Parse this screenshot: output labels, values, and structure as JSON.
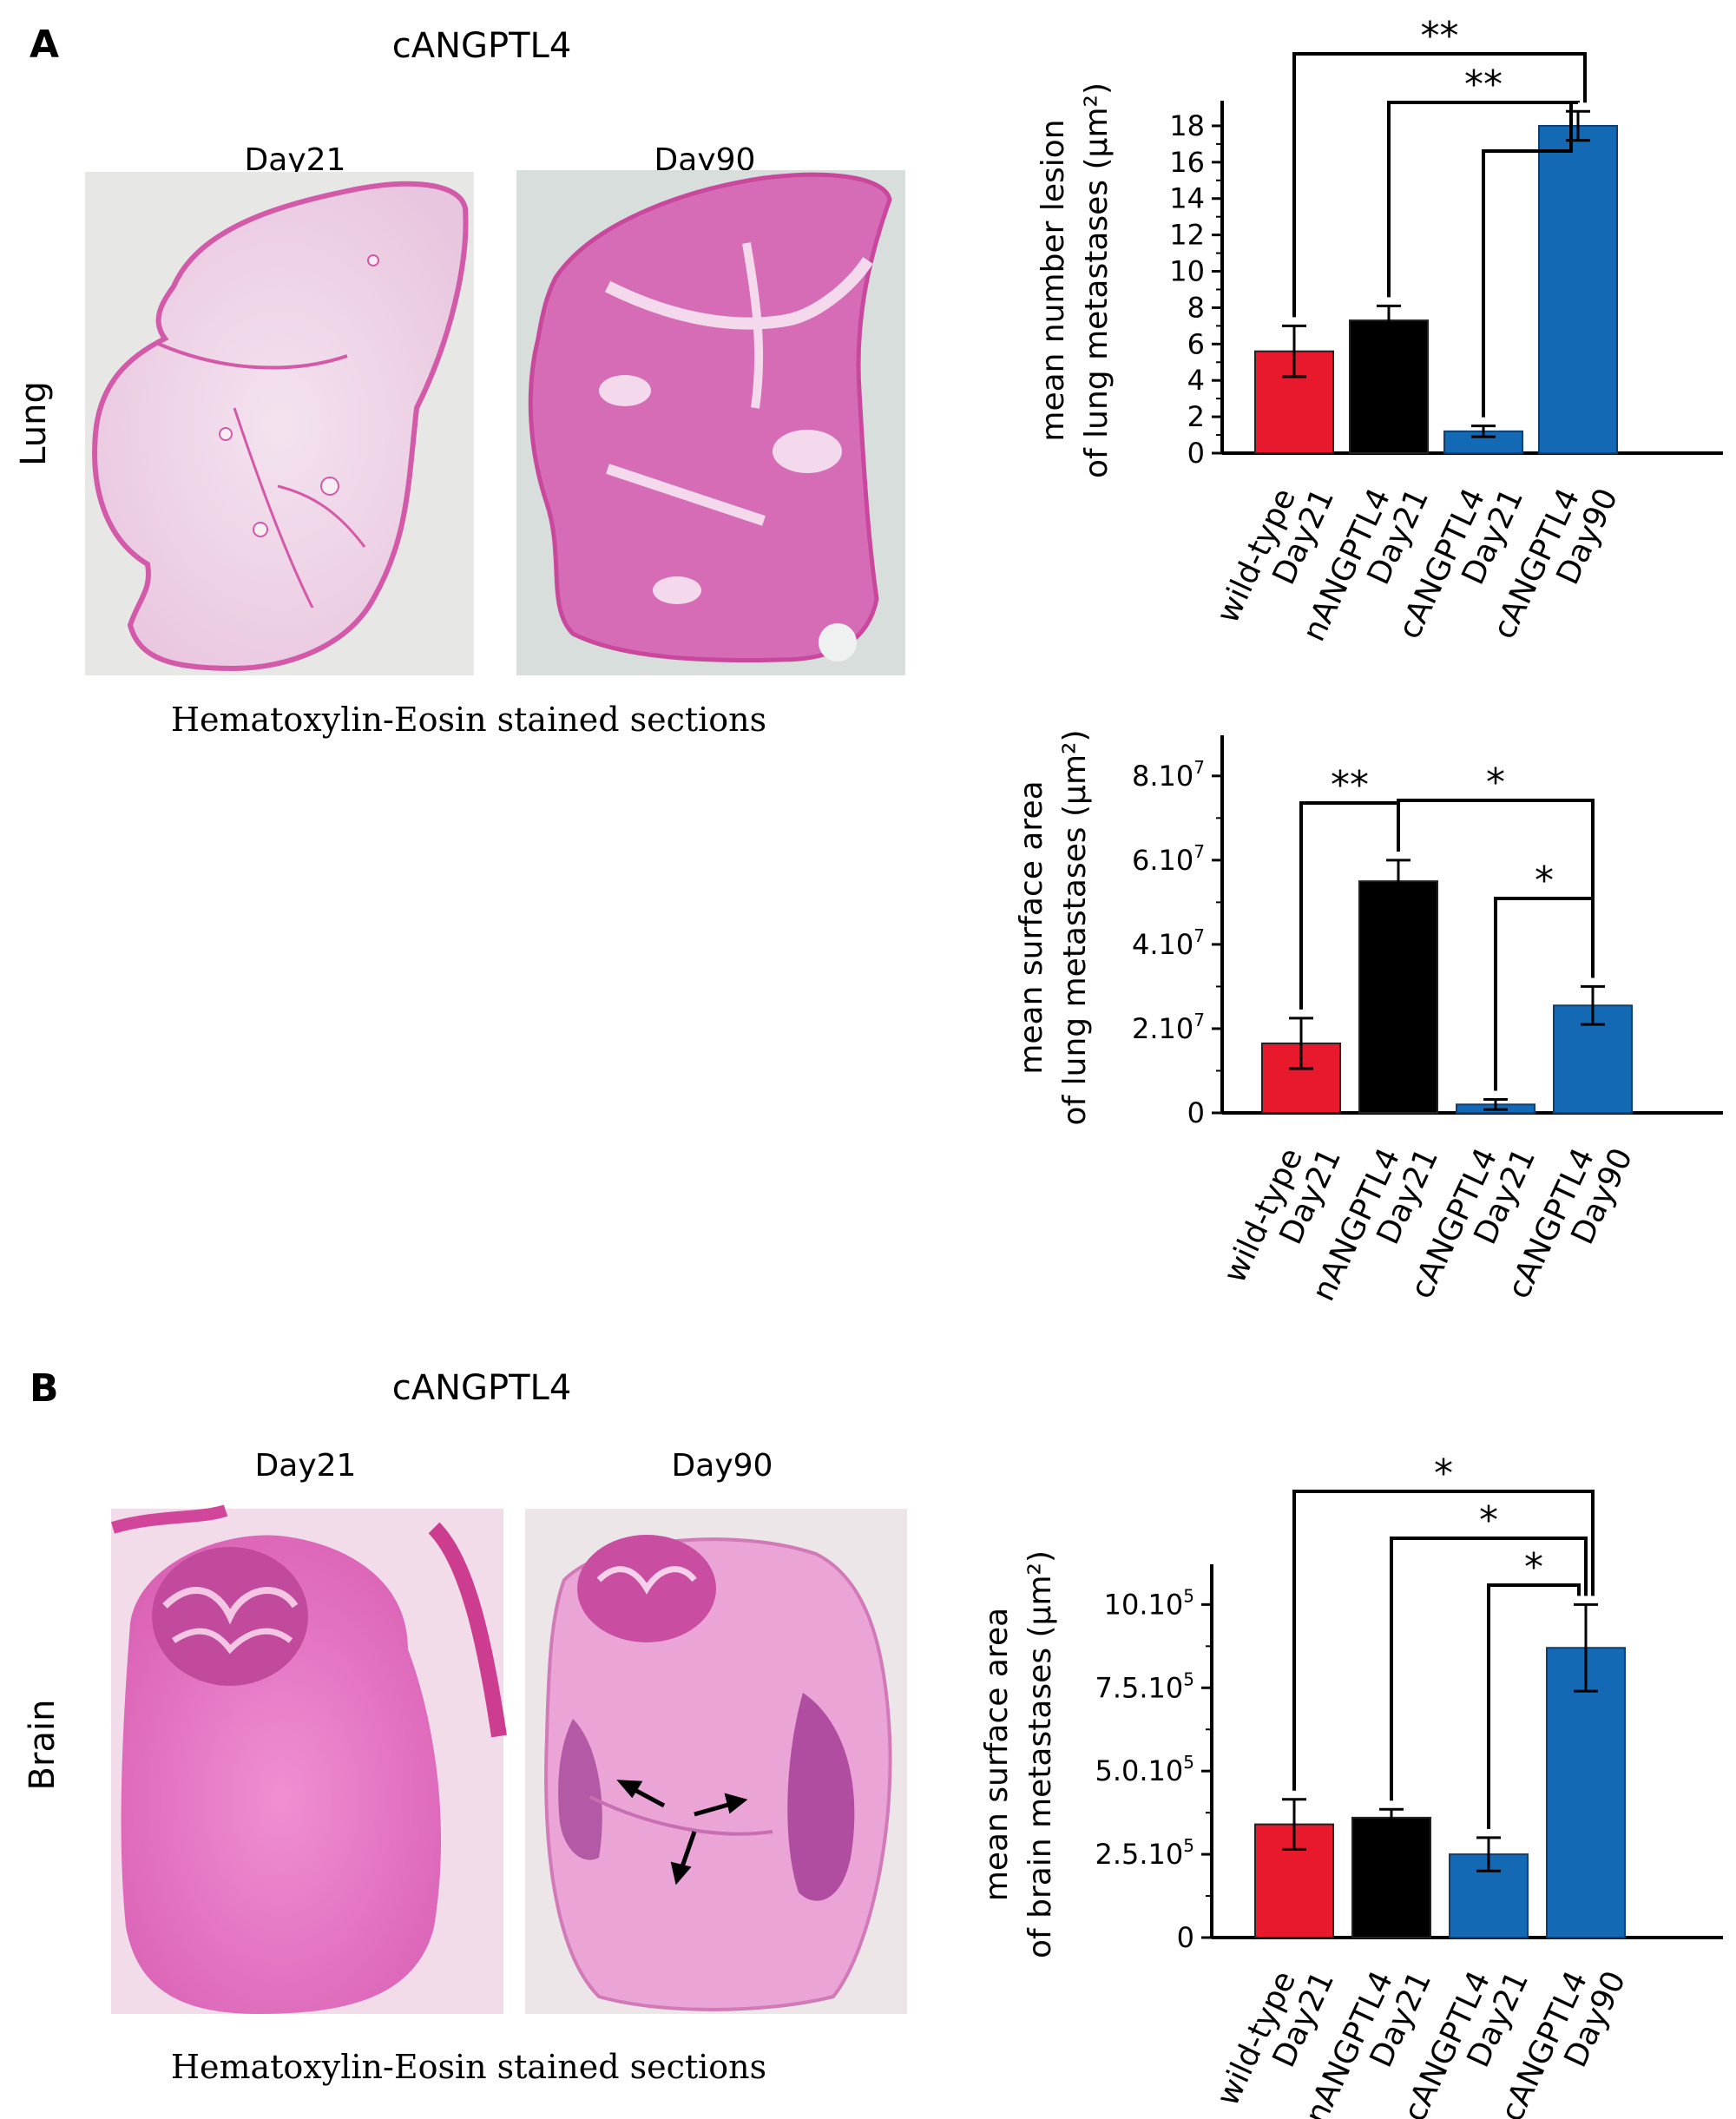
{
  "panel_a": {
    "letter": "A",
    "heading": "cANGPTL4",
    "row_label": "Lung",
    "image_labels": [
      "Day21",
      "Day90"
    ],
    "caption": "Hematoxylin-Eosin stained sections"
  },
  "panel_b": {
    "letter": "B",
    "heading": "cANGPTL4",
    "row_label": "Brain",
    "image_labels": [
      "Day21",
      "Day90"
    ],
    "caption": "Hematoxylin-Eosin stained sections"
  },
  "colors": {
    "wild_type": "#e8192c",
    "nANGPTL4": "#000000",
    "cANGPTL4": "#1469b5",
    "tissue": "#df6ab9"
  },
  "chart_data": [
    {
      "id": "lung-count",
      "type": "bar",
      "ylabel_line1": "mean number lesion",
      "ylabel_line2": "of lung metastases (µm²)",
      "ylim": [
        0,
        19
      ],
      "ticks": [
        {
          "value": 0,
          "label": "0"
        },
        {
          "value": 2,
          "label": "2"
        },
        {
          "value": 4,
          "label": "4"
        },
        {
          "value": 6,
          "label": "6"
        },
        {
          "value": 8,
          "label": "8"
        },
        {
          "value": 10,
          "label": "10"
        },
        {
          "value": 12,
          "label": "12"
        },
        {
          "value": 14,
          "label": "14"
        },
        {
          "value": 16,
          "label": "16"
        },
        {
          "value": 18,
          "label": "18"
        }
      ],
      "bars": [
        {
          "label1": "wild-type",
          "label2": "Day21",
          "value": 5.6,
          "err": 1.4,
          "group": "wild_type"
        },
        {
          "label1": "nANGPTL4",
          "label2": "Day21",
          "value": 7.3,
          "err": 0.8,
          "group": "nANGPTL4"
        },
        {
          "label1": "cANGPTL4",
          "label2": "Day21",
          "value": 1.2,
          "err": 0.3,
          "group": "cANGPTL4"
        },
        {
          "label1": "cANGPTL4",
          "label2": "Day90",
          "value": 18.0,
          "err": 0.8,
          "group": "cANGPTL4"
        }
      ],
      "significance": [
        {
          "from": 0,
          "to": 3,
          "label": "**"
        },
        {
          "from": 1,
          "to": 3,
          "label": "**"
        },
        {
          "from": 2,
          "to": 3,
          "label": ""
        }
      ]
    },
    {
      "id": "lung-area",
      "type": "bar",
      "ylabel_line1": "mean surface area",
      "ylabel_line2": "of lung metastases (µm²)",
      "ylim": [
        0,
        8.8
      ],
      "ticks": [
        {
          "value": 0,
          "label": "0"
        },
        {
          "value": 2,
          "label": "2.10",
          "exp": "7"
        },
        {
          "value": 4,
          "label": "4.10",
          "exp": "7"
        },
        {
          "value": 6,
          "label": "6.10",
          "exp": "7"
        },
        {
          "value": 8,
          "label": "8.10",
          "exp": "7"
        }
      ],
      "bars": [
        {
          "label1": "wild-type",
          "label2": "Day21",
          "value": 1.65,
          "err": 0.6,
          "group": "wild_type"
        },
        {
          "label1": "nANGPTL4",
          "label2": "Day21",
          "value": 5.5,
          "err": 0.5,
          "group": "nANGPTL4"
        },
        {
          "label1": "cANGPTL4",
          "label2": "Day21",
          "value": 0.2,
          "err": 0.12,
          "group": "cANGPTL4"
        },
        {
          "label1": "cANGPTL4",
          "label2": "Day90",
          "value": 2.55,
          "err": 0.45,
          "group": "cANGPTL4"
        }
      ],
      "significance": [
        {
          "from": 0,
          "to": 1,
          "label": "**"
        },
        {
          "from": 1,
          "to": 3,
          "label": "*"
        },
        {
          "from": 2,
          "to": 3,
          "label": "*"
        }
      ]
    },
    {
      "id": "brain-area",
      "type": "bar",
      "ylabel_line1": "mean surface area",
      "ylabel_line2": "of brain metastases (µm²)",
      "ylim": [
        0,
        11
      ],
      "ticks": [
        {
          "value": 0,
          "label": "0"
        },
        {
          "value": 2.5,
          "label": "2.5.10",
          "exp": "5"
        },
        {
          "value": 5,
          "label": "5.0.10",
          "exp": "5"
        },
        {
          "value": 7.5,
          "label": "7.5.10",
          "exp": "5"
        },
        {
          "value": 10,
          "label": "10.10",
          "exp": "5"
        }
      ],
      "bars": [
        {
          "label1": "wild-type",
          "label2": "Day21",
          "value": 3.4,
          "err": 0.75,
          "group": "wild_type"
        },
        {
          "label1": "nANGPTL4",
          "label2": "Day21",
          "value": 3.6,
          "err": 0.25,
          "group": "nANGPTL4"
        },
        {
          "label1": "cANGPTL4",
          "label2": "Day21",
          "value": 2.5,
          "err": 0.5,
          "group": "cANGPTL4"
        },
        {
          "label1": "cANGPTL4",
          "label2": "Day90",
          "value": 8.7,
          "err": 1.3,
          "group": "cANGPTL4"
        }
      ],
      "significance": [
        {
          "from": 0,
          "to": 3,
          "label": "*"
        },
        {
          "from": 1,
          "to": 3,
          "label": "*"
        },
        {
          "from": 2,
          "to": 3,
          "label": "*"
        }
      ]
    }
  ]
}
